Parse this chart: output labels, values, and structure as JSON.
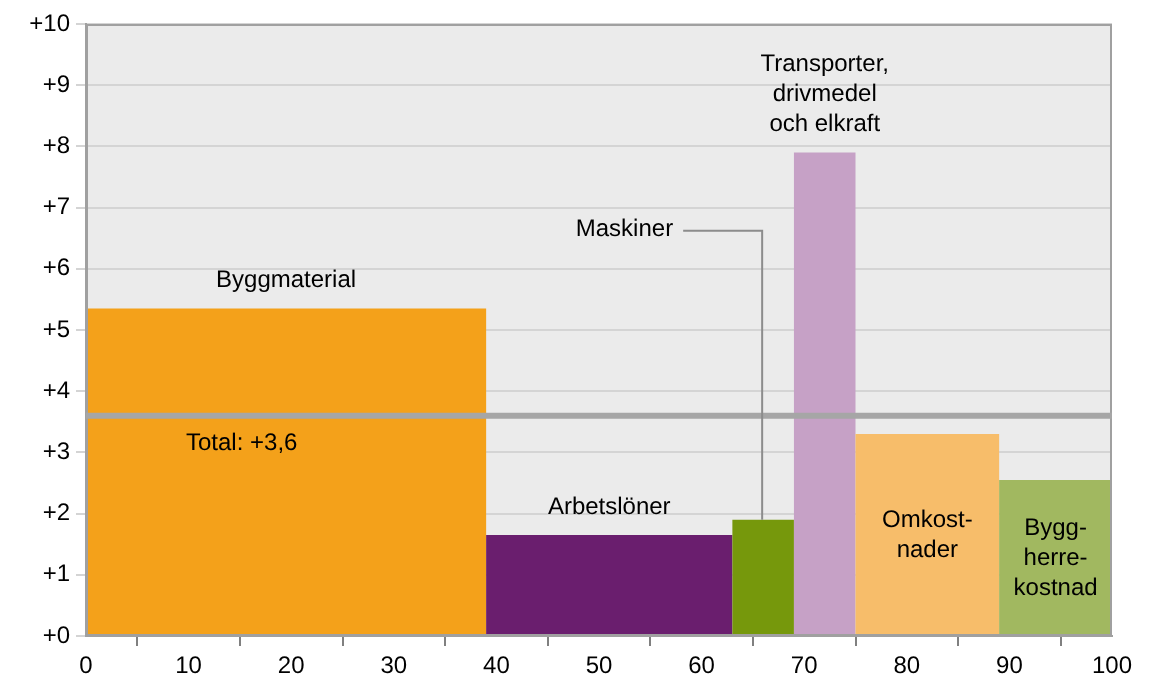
{
  "chart_data": {
    "type": "histogram",
    "bins": [
      0,
      39,
      63,
      69,
      75,
      89,
      100
    ],
    "values": [
      5.35,
      1.65,
      1.9,
      7.9,
      3.3,
      2.55
    ],
    "colors": [
      "#f4a11a",
      "#6a1e6e",
      "#76980c",
      "#c6a1c6",
      "#f7bd6a",
      "#a1b860"
    ],
    "xlim": [
      0,
      100
    ],
    "xticks": [
      0,
      10,
      20,
      30,
      40,
      50,
      60,
      70,
      80,
      90,
      100
    ],
    "ylim": [
      0,
      10
    ],
    "yticks": [
      {
        "value": 0,
        "label": "+0"
      },
      {
        "value": 1,
        "label": "+1"
      },
      {
        "value": 2,
        "label": "+2"
      },
      {
        "value": 3,
        "label": "+3"
      },
      {
        "value": 4,
        "label": "+4"
      },
      {
        "value": 5,
        "label": "+5"
      },
      {
        "value": 6,
        "label": "+6"
      },
      {
        "value": 7,
        "label": "+7"
      },
      {
        "value": 8,
        "label": "+8"
      },
      {
        "value": 9,
        "label": "+9"
      },
      {
        "value": 10,
        "label": "+10"
      }
    ],
    "grid": "y",
    "ref_lines": [
      {
        "axis": "y",
        "value": 3.6,
        "label": "Total: +3,6",
        "color": "#a6a6a6"
      }
    ],
    "annotations": [
      "Byggmaterial",
      "Arbetslöner",
      {
        "text": "Maskiner",
        "x": 66,
        "y": 1.9
      },
      "Transporter,\ndrivmedel\noch elkraft",
      "Omkost-\nnader",
      "Bygg-\nherre-\nkostnad"
    ]
  }
}
